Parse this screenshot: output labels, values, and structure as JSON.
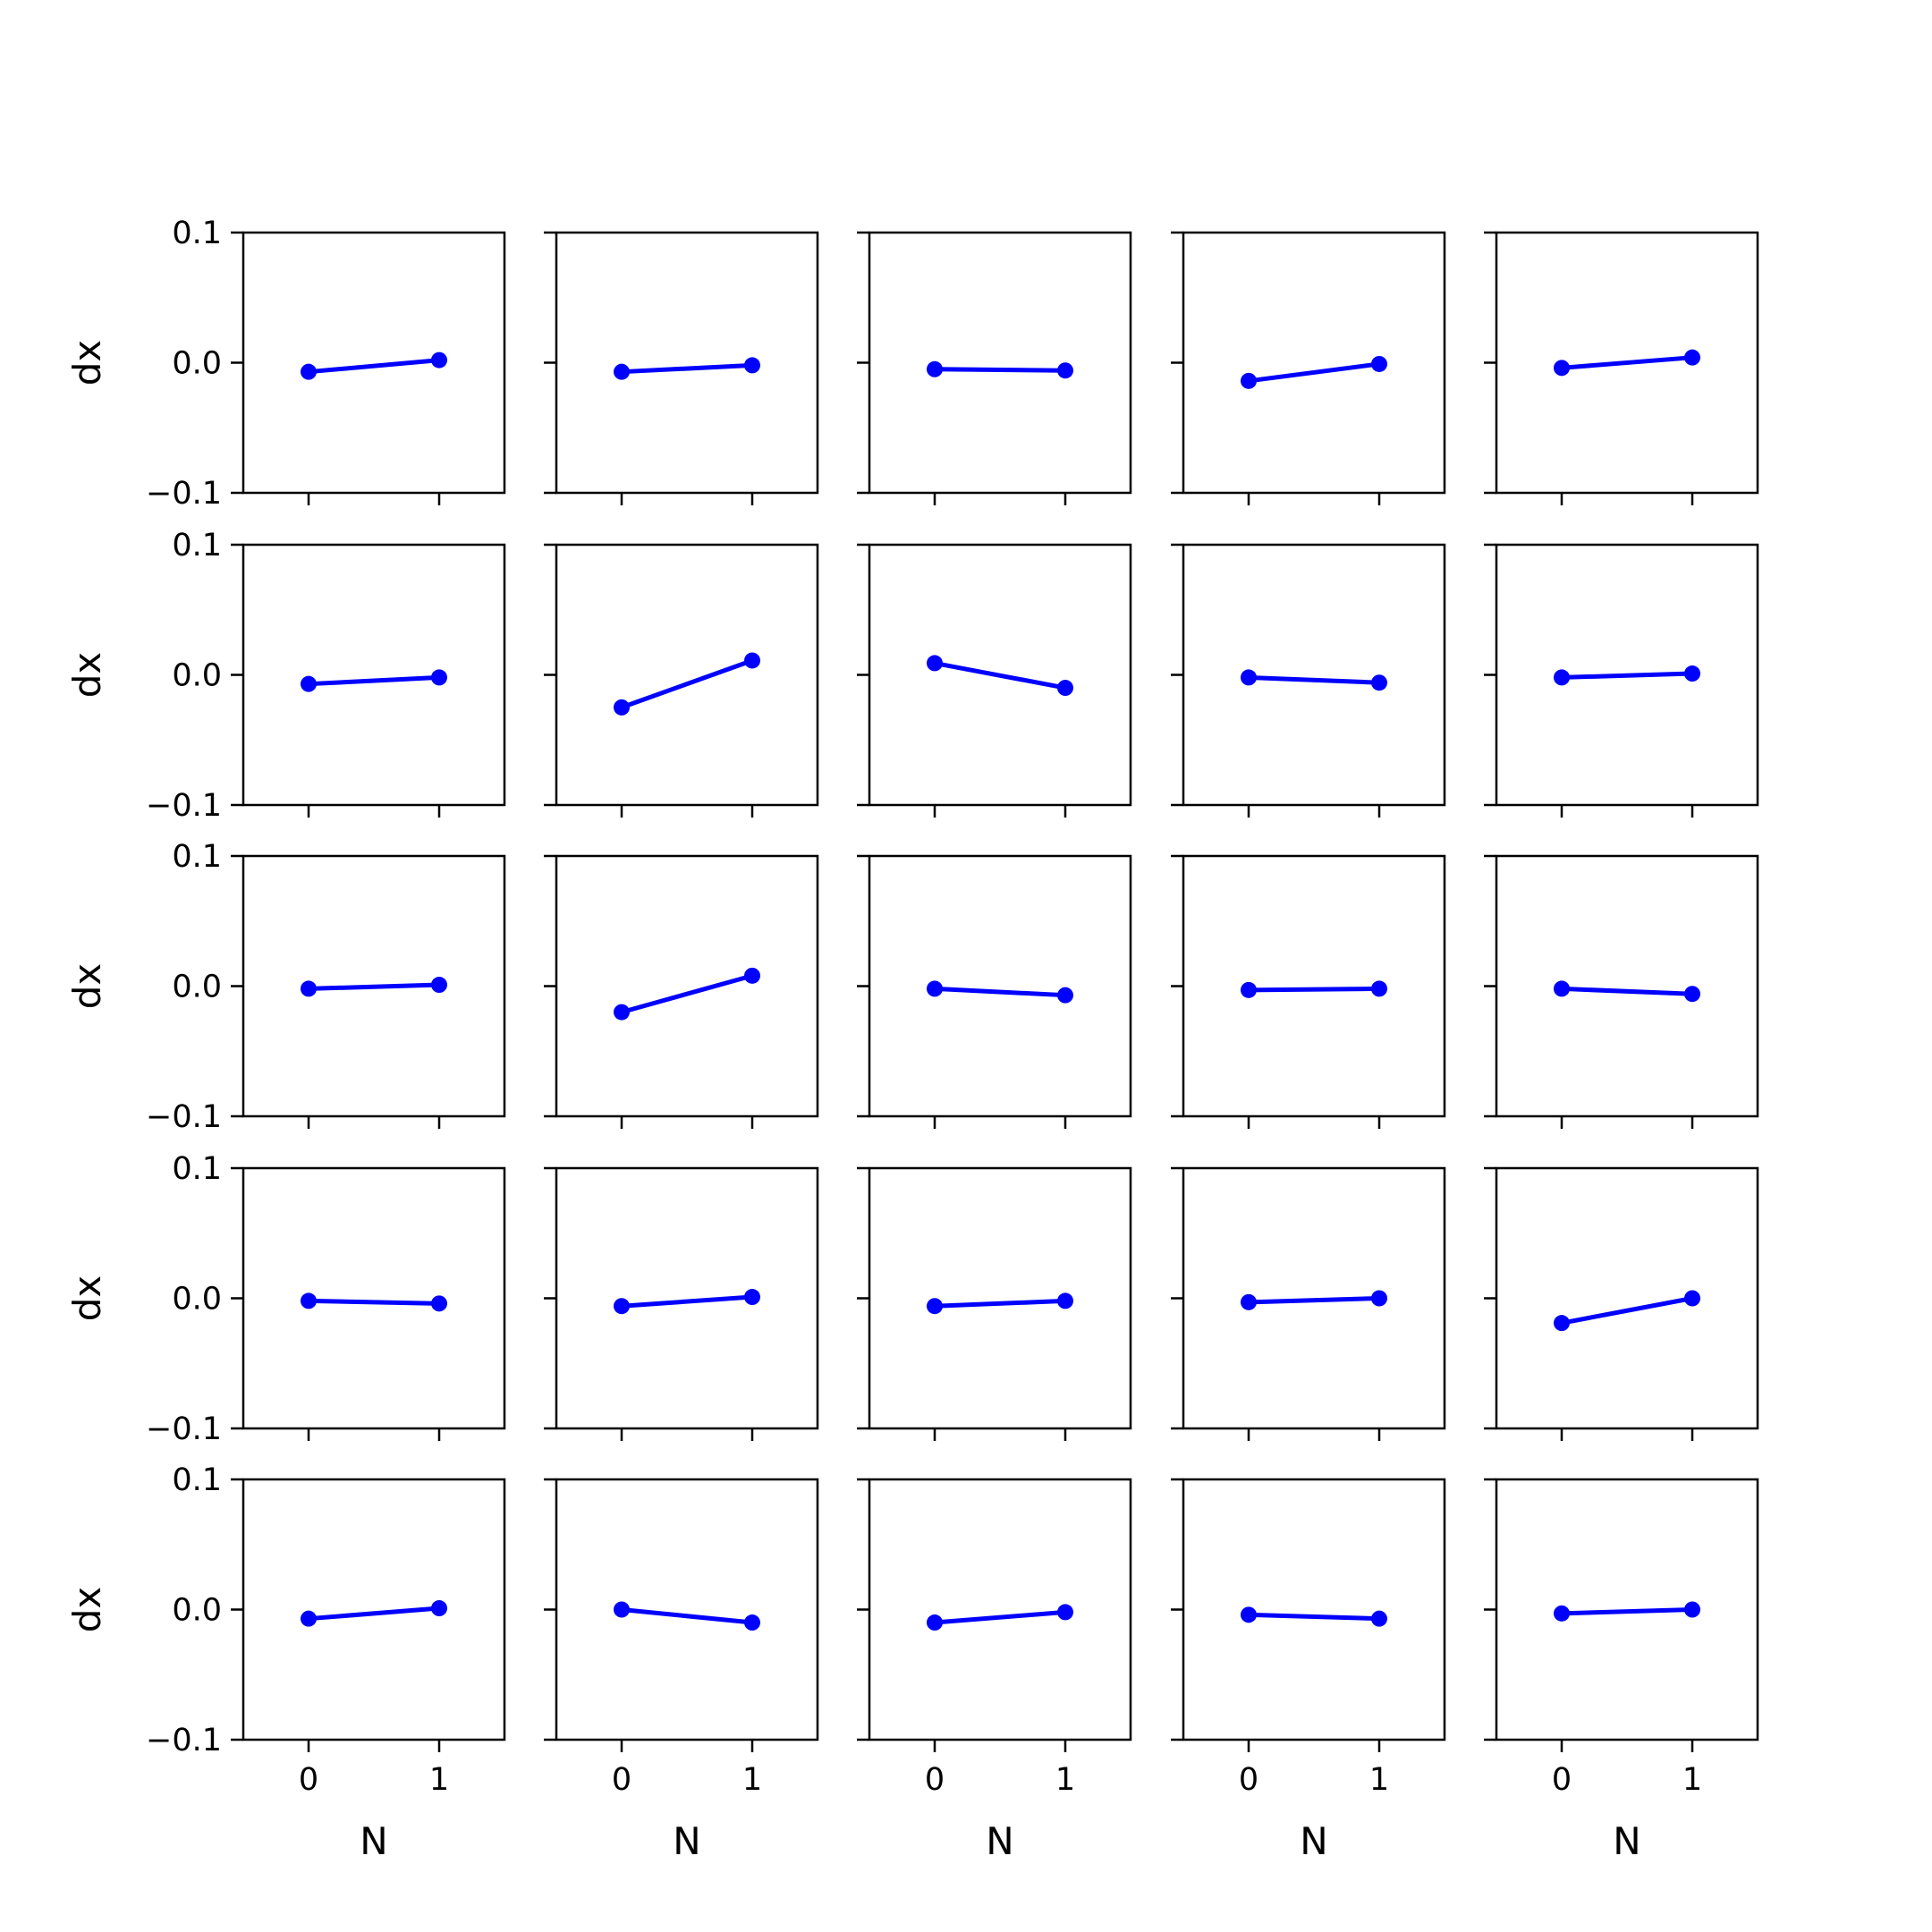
{
  "chart_data": {
    "type": "line",
    "layout": "grid",
    "rows": 5,
    "cols": 5,
    "shared_x": true,
    "shared_y": true,
    "xlabel": "N",
    "ylabel": "dx",
    "x": [
      0,
      1
    ],
    "xticks": [
      0,
      1
    ],
    "xlim": [
      -0.5,
      1.5
    ],
    "ylim": [
      -0.1,
      0.1
    ],
    "yticks": [
      -0.1,
      0.0,
      0.1
    ],
    "ytick_labels": [
      "−0.1",
      "0.0",
      "0.1"
    ],
    "series_color": "#0000ff",
    "marker": "circle",
    "grid": false,
    "panels": [
      {
        "row": 0,
        "col": 0,
        "y": [
          -0.007,
          0.002
        ]
      },
      {
        "row": 0,
        "col": 1,
        "y": [
          -0.007,
          -0.002
        ]
      },
      {
        "row": 0,
        "col": 2,
        "y": [
          -0.005,
          -0.006
        ]
      },
      {
        "row": 0,
        "col": 3,
        "y": [
          -0.014,
          -0.001
        ]
      },
      {
        "row": 0,
        "col": 4,
        "y": [
          -0.004,
          0.004
        ]
      },
      {
        "row": 1,
        "col": 0,
        "y": [
          -0.007,
          -0.002
        ]
      },
      {
        "row": 1,
        "col": 1,
        "y": [
          -0.025,
          0.011
        ]
      },
      {
        "row": 1,
        "col": 2,
        "y": [
          0.009,
          -0.01
        ]
      },
      {
        "row": 1,
        "col": 3,
        "y": [
          -0.002,
          -0.006
        ]
      },
      {
        "row": 1,
        "col": 4,
        "y": [
          -0.002,
          0.001
        ]
      },
      {
        "row": 2,
        "col": 0,
        "y": [
          -0.002,
          0.001
        ]
      },
      {
        "row": 2,
        "col": 1,
        "y": [
          -0.02,
          0.008
        ]
      },
      {
        "row": 2,
        "col": 2,
        "y": [
          -0.002,
          -0.007
        ]
      },
      {
        "row": 2,
        "col": 3,
        "y": [
          -0.003,
          -0.002
        ]
      },
      {
        "row": 2,
        "col": 4,
        "y": [
          -0.002,
          -0.006
        ]
      },
      {
        "row": 3,
        "col": 0,
        "y": [
          -0.002,
          -0.004
        ]
      },
      {
        "row": 3,
        "col": 1,
        "y": [
          -0.006,
          0.001
        ]
      },
      {
        "row": 3,
        "col": 2,
        "y": [
          -0.006,
          -0.002
        ]
      },
      {
        "row": 3,
        "col": 3,
        "y": [
          -0.003,
          0.0
        ]
      },
      {
        "row": 3,
        "col": 4,
        "y": [
          -0.019,
          0.0
        ]
      },
      {
        "row": 4,
        "col": 0,
        "y": [
          -0.007,
          0.001
        ]
      },
      {
        "row": 4,
        "col": 1,
        "y": [
          0.0,
          -0.01
        ]
      },
      {
        "row": 4,
        "col": 2,
        "y": [
          -0.01,
          -0.002
        ]
      },
      {
        "row": 4,
        "col": 3,
        "y": [
          -0.004,
          -0.007
        ]
      },
      {
        "row": 4,
        "col": 4,
        "y": [
          -0.003,
          0.0
        ]
      }
    ]
  }
}
